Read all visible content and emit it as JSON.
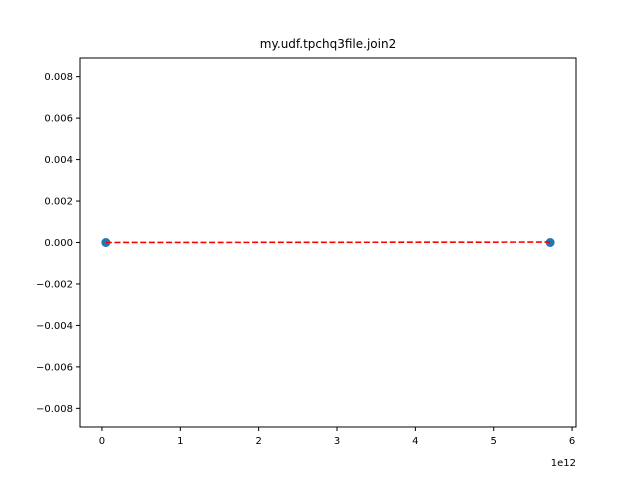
{
  "chart_data": {
    "type": "scatter",
    "title": "my.udf.tpchq3file.join2",
    "xlabel": "",
    "ylabel": "",
    "x_offset_label": "1e12",
    "xlim": [
      -0.28,
      6.05
    ],
    "ylim": [
      -0.0089,
      0.0089
    ],
    "x_ticks": [
      0,
      1,
      2,
      3,
      4,
      5,
      6
    ],
    "x_tick_labels": [
      "0",
      "1",
      "2",
      "3",
      "4",
      "5",
      "6"
    ],
    "y_ticks": [
      0.008,
      0.006,
      0.004,
      0.002,
      0.0,
      -0.002,
      -0.004,
      -0.006,
      -0.008
    ],
    "y_tick_labels": [
      "0.008",
      "0.006",
      "0.004",
      "0.002",
      "0.000",
      "−0.002",
      "−0.004",
      "−0.006",
      "−0.008"
    ],
    "grid": false,
    "series": [
      {
        "kind": "scatter",
        "color": "#1f77b4",
        "x": [
          0.05,
          5.72
        ],
        "y": [
          0.0,
          0.0
        ]
      },
      {
        "kind": "line",
        "style": "dashed",
        "color": "#ff0000",
        "x": [
          0.05,
          5.72
        ],
        "y": [
          0.0,
          2e-05
        ]
      }
    ]
  }
}
